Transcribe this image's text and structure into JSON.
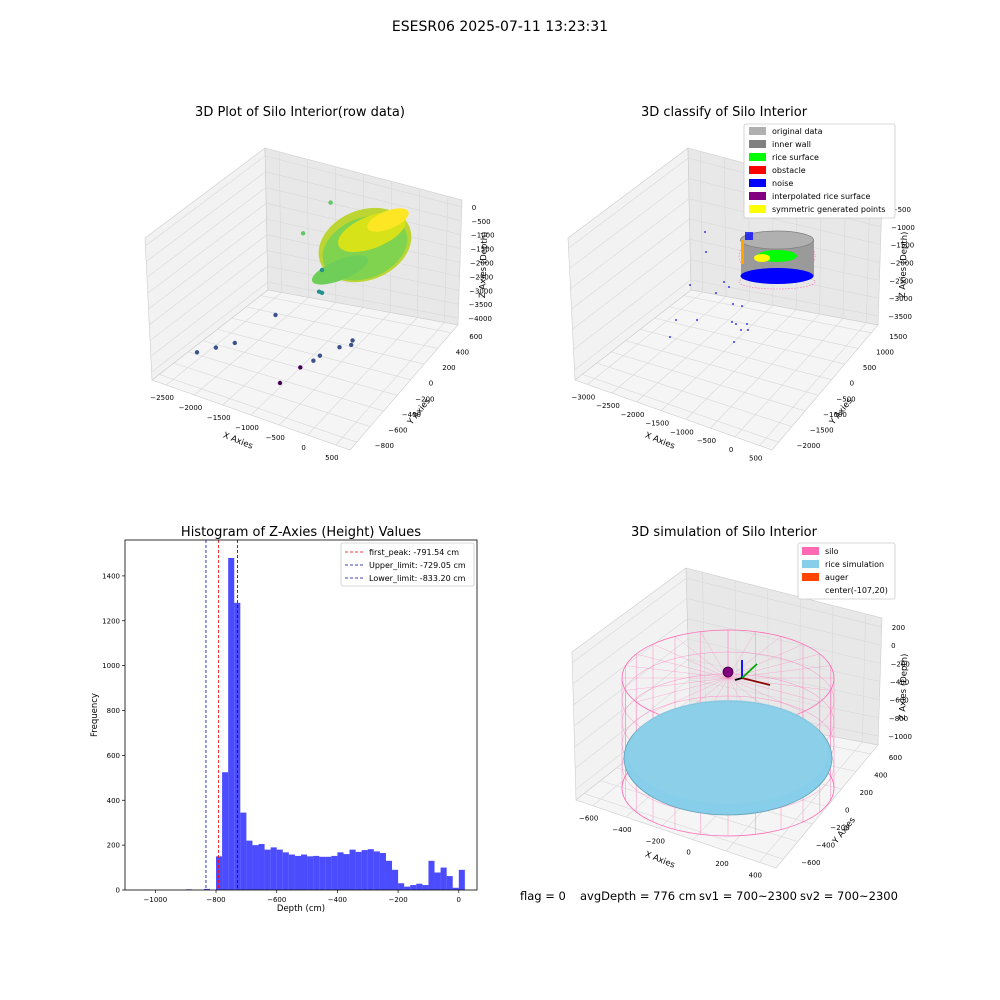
{
  "figure": {
    "suptitle": "ESESR06 2025-07-11 13:23:31",
    "footer": {
      "flag": "flag = 0",
      "avg_depth": "avgDepth = 776 cm",
      "sv1": "sv1 = 700~2300",
      "sv2": "sv2 = 700~2300"
    }
  },
  "chart_data": [
    {
      "type": "scatter",
      "title": "3D Plot of Silo Interior(row data)",
      "xlabel": "X Axies",
      "ylabel": "Y Axies",
      "zlabel": "Z Axies (Depth)",
      "x_ticks": [
        "−2500",
        "−2000",
        "−1500",
        "−1000",
        "−500",
        "0",
        "500"
      ],
      "y_ticks": [
        "−800",
        "−600",
        "−400",
        "−200",
        "0",
        "200",
        "400",
        "600"
      ],
      "z_ticks": [
        "0",
        "−500",
        "−1000",
        "−1500",
        "−2000",
        "−2500",
        "−3000",
        "−3500",
        "−4000"
      ],
      "colormap": [
        "#440154",
        "#3b528b",
        "#21918c",
        "#5ec962",
        "#fde725"
      ],
      "outlier_points": [
        {
          "x": -2400,
          "y": -600,
          "z": -3600
        },
        {
          "x": -2200,
          "y": -500,
          "z": -3500
        },
        {
          "x": -2000,
          "y": -400,
          "z": -3400
        },
        {
          "x": -1800,
          "y": 0,
          "z": -3100
        },
        {
          "x": -1300,
          "y": 200,
          "z": -2400
        },
        {
          "x": -1250,
          "y": 200,
          "z": -2400
        },
        {
          "x": -1500,
          "y": 400,
          "z": -2200
        },
        {
          "x": -1000,
          "y": -300,
          "z": -3700
        },
        {
          "x": -900,
          "y": -200,
          "z": -3600
        },
        {
          "x": -850,
          "y": -150,
          "z": -3500
        },
        {
          "x": -700,
          "y": 0,
          "z": -3400
        },
        {
          "x": -600,
          "y": 100,
          "z": -3300
        },
        {
          "x": -500,
          "y": 0,
          "z": -3200
        },
        {
          "x": -1100,
          "y": -500,
          "z": -3900
        },
        {
          "x": -1600,
          "y": 600,
          "z": -500
        },
        {
          "x": -1700,
          "y": 300,
          "z": -1000
        }
      ]
    },
    {
      "type": "scatter",
      "title": "3D classify of Silo Interior",
      "xlabel": "X Axies",
      "ylabel": "Y Axies",
      "zlabel": "Z Axies (Depth)",
      "x_ticks": [
        "−3000",
        "−2500",
        "−2000",
        "−1500",
        "−1000",
        "−500",
        "0",
        "500"
      ],
      "y_ticks": [
        "−2000",
        "−1500",
        "−1000",
        "−500",
        "0",
        "500",
        "1000",
        "1500"
      ],
      "z_ticks": [
        "−500",
        "−1000",
        "−1500",
        "−2000",
        "−2500",
        "−3000",
        "−3500"
      ],
      "legend": [
        {
          "label": "original data",
          "color": "#b0b0b0"
        },
        {
          "label": "inner wall",
          "color": "#808080"
        },
        {
          "label": "rice surface",
          "color": "#00ff00"
        },
        {
          "label": "obstacle",
          "color": "#ff0000"
        },
        {
          "label": "noise",
          "color": "#0000ff"
        },
        {
          "label": "interpolated rice surface",
          "color": "#800080"
        },
        {
          "label": "symmetric generated points",
          "color": "#ffff00"
        }
      ],
      "legend_position": "top-right"
    },
    {
      "type": "bar",
      "title": "Histogram of Z-Axies (Height) Values",
      "xlabel": "Depth (cm)",
      "ylabel": "Frequency",
      "bar_color": "#0000ff",
      "xlim": [
        -1100,
        60
      ],
      "ylim": [
        0,
        1560
      ],
      "x_ticks": [
        -1000,
        -800,
        -600,
        -400,
        -200,
        0
      ],
      "x_tick_labels": [
        "−1000",
        "−800",
        "−600",
        "−400",
        "−200",
        "0"
      ],
      "y_ticks": [
        0,
        200,
        400,
        600,
        800,
        1000,
        1200,
        1400
      ],
      "y_tick_labels": [
        "0",
        "200",
        "400",
        "600",
        "800",
        "1000",
        "1200",
        "1400"
      ],
      "bin_start": -1100,
      "bin_width": 20,
      "values": [
        0,
        0,
        0,
        1,
        0,
        0,
        0,
        0,
        0,
        0,
        3,
        0,
        0,
        5,
        0,
        150,
        525,
        1480,
        1280,
        345,
        220,
        200,
        205,
        180,
        190,
        180,
        168,
        158,
        152,
        158,
        150,
        152,
        148,
        148,
        152,
        168,
        160,
        180,
        170,
        178,
        182,
        172,
        165,
        130,
        90,
        30,
        15,
        22,
        28,
        22,
        130,
        78,
        100,
        62,
        10,
        90
      ],
      "reference_lines": [
        {
          "label": "first_peak: -791.54 cm",
          "x": -791.54,
          "color": "#ff0000"
        },
        {
          "label": "Upper_limit: -729.05 cm",
          "x": -729.05,
          "color": "#0000aa"
        },
        {
          "label": "Lower_limit: -833.20 cm",
          "x": -833.2,
          "color": "#0000aa"
        }
      ],
      "legend_position": "top-right"
    },
    {
      "type": "scatter",
      "title": "3D simulation of Silo Interior",
      "xlabel": "X Axies",
      "ylabel": "Y Axies",
      "zlabel": "Z Axies (Depth)",
      "x_ticks": [
        "−600",
        "−400",
        "−200",
        "0",
        "200",
        "400"
      ],
      "y_ticks": [
        "−600",
        "−400",
        "−200",
        "0",
        "200",
        "400",
        "600"
      ],
      "z_ticks": [
        "200",
        "0",
        "−200",
        "−400",
        "−600",
        "−800",
        "−1000"
      ],
      "legend": [
        {
          "label": "silo",
          "color": "#ff69b4"
        },
        {
          "label": "rice simulation",
          "color": "#87ceeb"
        },
        {
          "label": "auger",
          "color": "#ff4500"
        },
        {
          "label": "center(-107,20)",
          "color": ""
        }
      ],
      "legend_position": "top-right",
      "center": {
        "x": -107,
        "y": 20
      }
    }
  ]
}
